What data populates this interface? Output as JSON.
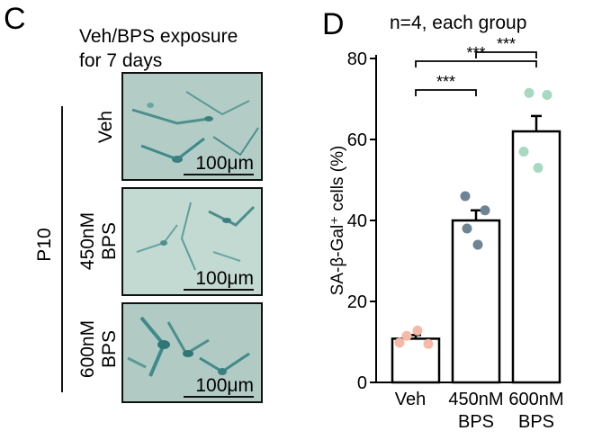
{
  "panel_c": {
    "letter": "C",
    "caption_line1": "Veh/BPS exposure",
    "caption_line2": "for 7 days",
    "passage_label": "P10",
    "rows": [
      {
        "line1": "Veh",
        "line2": "",
        "scale": "100μm"
      },
      {
        "line1": "450nM",
        "line2": "BPS",
        "scale": "100μm"
      },
      {
        "line1": "600nM",
        "line2": "BPS",
        "scale": "100μm"
      }
    ],
    "image_colors": {
      "background": "#b5cfc8",
      "cells": "#3f8c8c"
    }
  },
  "panel_d": {
    "letter": "D",
    "note": "n=4, each group"
  },
  "chart_data": {
    "type": "bar",
    "categories": [
      "Veh",
      "450nM BPS",
      "600nM BPS"
    ],
    "category_labels": [
      [
        "Veh"
      ],
      [
        "450nM",
        "BPS"
      ],
      [
        "600nM",
        "BPS"
      ]
    ],
    "values": [
      10.8,
      40.0,
      62.0
    ],
    "errors": [
      0.9,
      2.5,
      3.8
    ],
    "points": [
      [
        11.5,
        12.8,
        9.5,
        9.8
      ],
      [
        46.0,
        42.5,
        38.0,
        34.0
      ],
      [
        71.5,
        71.0,
        57.0,
        53.0
      ]
    ],
    "point_colors": [
      "#f6b9a8",
      "#6c8493",
      "#a7d8c2"
    ],
    "ylabel": "SA-β-Gal⁺ cells (%)",
    "ylim": [
      0,
      80
    ],
    "yticks": [
      0,
      20,
      40,
      60,
      80
    ],
    "significance": [
      {
        "pair": [
          0,
          1
        ],
        "label": "***"
      },
      {
        "pair": [
          0,
          2
        ],
        "label": "***"
      },
      {
        "pair": [
          1,
          2
        ],
        "label": "***"
      }
    ],
    "grid": false,
    "bar_fill": "#ffffff",
    "bar_edge": "#000000"
  }
}
